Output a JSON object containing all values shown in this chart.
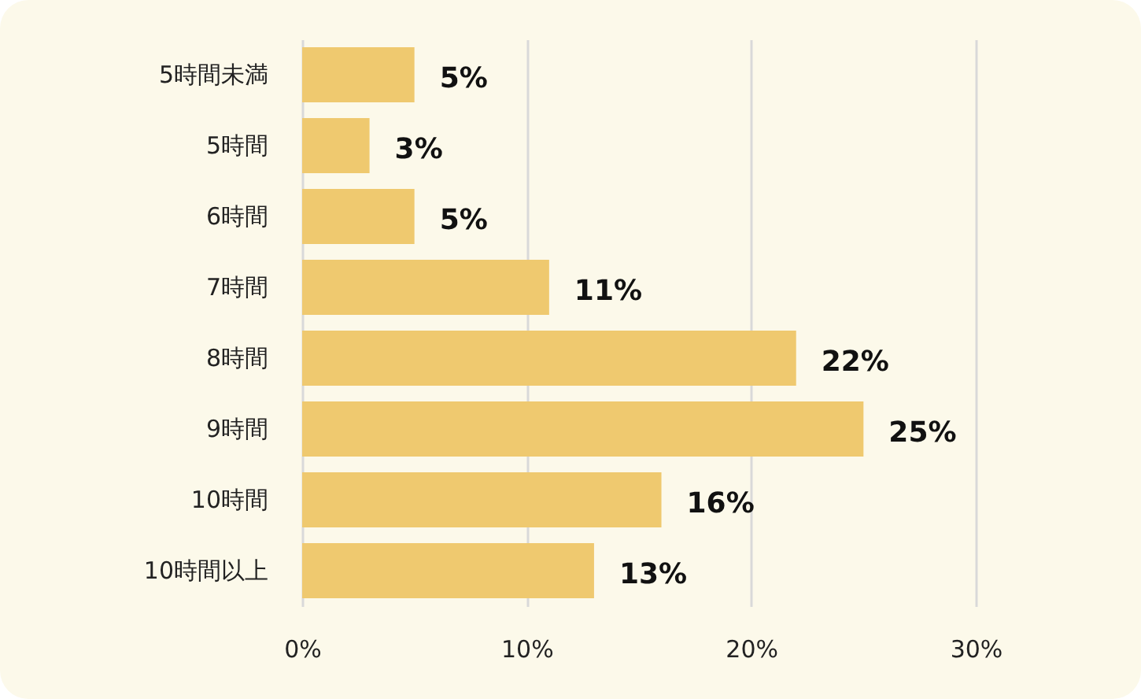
{
  "chart_data": {
    "type": "bar",
    "orientation": "horizontal",
    "categories": [
      "5時間未満",
      "5時間",
      "6時間",
      "7時間",
      "8時間",
      "9時間",
      "10時間",
      "10時間以上"
    ],
    "values": [
      5,
      3,
      5,
      11,
      22,
      25,
      16,
      13
    ],
    "color": "#efc96f",
    "xlim": [
      0,
      30
    ],
    "xticks": [
      {
        "value": 0,
        "label": "0%"
      },
      {
        "value": 10,
        "label": "10%"
      },
      {
        "value": 20,
        "label": "20%"
      },
      {
        "value": 30,
        "label": "30%"
      }
    ],
    "grid": "x",
    "value_labels": [
      "5%",
      "3%",
      "5%",
      "11%",
      "22%",
      "25%",
      "16%",
      "13%"
    ]
  }
}
